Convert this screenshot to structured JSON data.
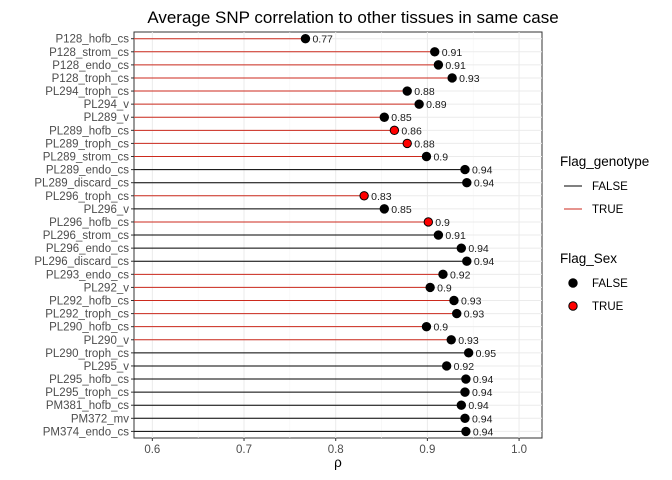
{
  "chart_data": {
    "type": "lollipop",
    "title": "Average SNP correlation to other tissues in same case",
    "xlabel": "ρ",
    "ylabel": "",
    "xlim": [
      0.58,
      1.025
    ],
    "x_ticks": [
      "0.6",
      "0.7",
      "0.8",
      "0.9",
      "1.0"
    ],
    "grid": true,
    "legend_position": "right",
    "colors": {
      "false": "#000000",
      "true_line": "#cc2a1d",
      "true_point": "#ff0000"
    },
    "legends": [
      {
        "title": "Flag_genotype",
        "kind": "line",
        "entries": [
          {
            "label": "FALSE",
            "key": "false"
          },
          {
            "label": "TRUE",
            "key": "true"
          }
        ]
      },
      {
        "title": "Flag_Sex",
        "kind": "point",
        "entries": [
          {
            "label": "FALSE",
            "key": "false"
          },
          {
            "label": "TRUE",
            "key": "true"
          }
        ]
      }
    ],
    "rows": [
      {
        "label": "P128_hofb_cs",
        "value": 0.767,
        "value_label": "0.77",
        "genotype": true,
        "sex": false
      },
      {
        "label": "P128_strom_cs",
        "value": 0.908,
        "value_label": "0.91",
        "genotype": true,
        "sex": false
      },
      {
        "label": "P128_endo_cs",
        "value": 0.912,
        "value_label": "0.91",
        "genotype": true,
        "sex": false
      },
      {
        "label": "P128_troph_cs",
        "value": 0.927,
        "value_label": "0.93",
        "genotype": true,
        "sex": false
      },
      {
        "label": "PL294_troph_cs",
        "value": 0.878,
        "value_label": "0.88",
        "genotype": true,
        "sex": false
      },
      {
        "label": "PL294_v",
        "value": 0.891,
        "value_label": "0.89",
        "genotype": true,
        "sex": false
      },
      {
        "label": "PL289_v",
        "value": 0.853,
        "value_label": "0.85",
        "genotype": true,
        "sex": false
      },
      {
        "label": "PL289_hofb_cs",
        "value": 0.864,
        "value_label": "0.86",
        "genotype": true,
        "sex": true
      },
      {
        "label": "PL289_troph_cs",
        "value": 0.878,
        "value_label": "0.88",
        "genotype": true,
        "sex": true
      },
      {
        "label": "PL289_strom_cs",
        "value": 0.899,
        "value_label": "0.9",
        "genotype": true,
        "sex": false
      },
      {
        "label": "PL289_endo_cs",
        "value": 0.941,
        "value_label": "0.94",
        "genotype": false,
        "sex": false
      },
      {
        "label": "PL289_discard_cs",
        "value": 0.943,
        "value_label": "0.94",
        "genotype": false,
        "sex": false
      },
      {
        "label": "PL296_troph_cs",
        "value": 0.831,
        "value_label": "0.83",
        "genotype": true,
        "sex": true
      },
      {
        "label": "PL296_v",
        "value": 0.853,
        "value_label": "0.85",
        "genotype": false,
        "sex": false
      },
      {
        "label": "PL296_hofb_cs",
        "value": 0.901,
        "value_label": "0.9",
        "genotype": true,
        "sex": true
      },
      {
        "label": "PL296_strom_cs",
        "value": 0.912,
        "value_label": "0.91",
        "genotype": false,
        "sex": false
      },
      {
        "label": "PL296_endo_cs",
        "value": 0.937,
        "value_label": "0.94",
        "genotype": false,
        "sex": false
      },
      {
        "label": "PL296_discard_cs",
        "value": 0.943,
        "value_label": "0.94",
        "genotype": false,
        "sex": false
      },
      {
        "label": "PL293_endo_cs",
        "value": 0.917,
        "value_label": "0.92",
        "genotype": true,
        "sex": false
      },
      {
        "label": "PL292_v",
        "value": 0.903,
        "value_label": "0.9",
        "genotype": true,
        "sex": false
      },
      {
        "label": "PL292_hofb_cs",
        "value": 0.929,
        "value_label": "0.93",
        "genotype": true,
        "sex": false
      },
      {
        "label": "PL292_troph_cs",
        "value": 0.932,
        "value_label": "0.93",
        "genotype": true,
        "sex": false
      },
      {
        "label": "PL290_hofb_cs",
        "value": 0.899,
        "value_label": "0.9",
        "genotype": true,
        "sex": false
      },
      {
        "label": "PL290_v",
        "value": 0.926,
        "value_label": "0.93",
        "genotype": true,
        "sex": false
      },
      {
        "label": "PL290_troph_cs",
        "value": 0.945,
        "value_label": "0.95",
        "genotype": false,
        "sex": false
      },
      {
        "label": "PL295_v",
        "value": 0.921,
        "value_label": "0.92",
        "genotype": false,
        "sex": false
      },
      {
        "label": "PL295_hofb_cs",
        "value": 0.942,
        "value_label": "0.94",
        "genotype": false,
        "sex": false
      },
      {
        "label": "PL295_troph_cs",
        "value": 0.941,
        "value_label": "0.94",
        "genotype": false,
        "sex": false
      },
      {
        "label": "PM381_hofb_cs",
        "value": 0.937,
        "value_label": "0.94",
        "genotype": false,
        "sex": false
      },
      {
        "label": "PM372_mv",
        "value": 0.941,
        "value_label": "0.94",
        "genotype": false,
        "sex": false
      },
      {
        "label": "PM374_endo_cs",
        "value": 0.942,
        "value_label": "0.94",
        "genotype": false,
        "sex": false
      }
    ]
  }
}
